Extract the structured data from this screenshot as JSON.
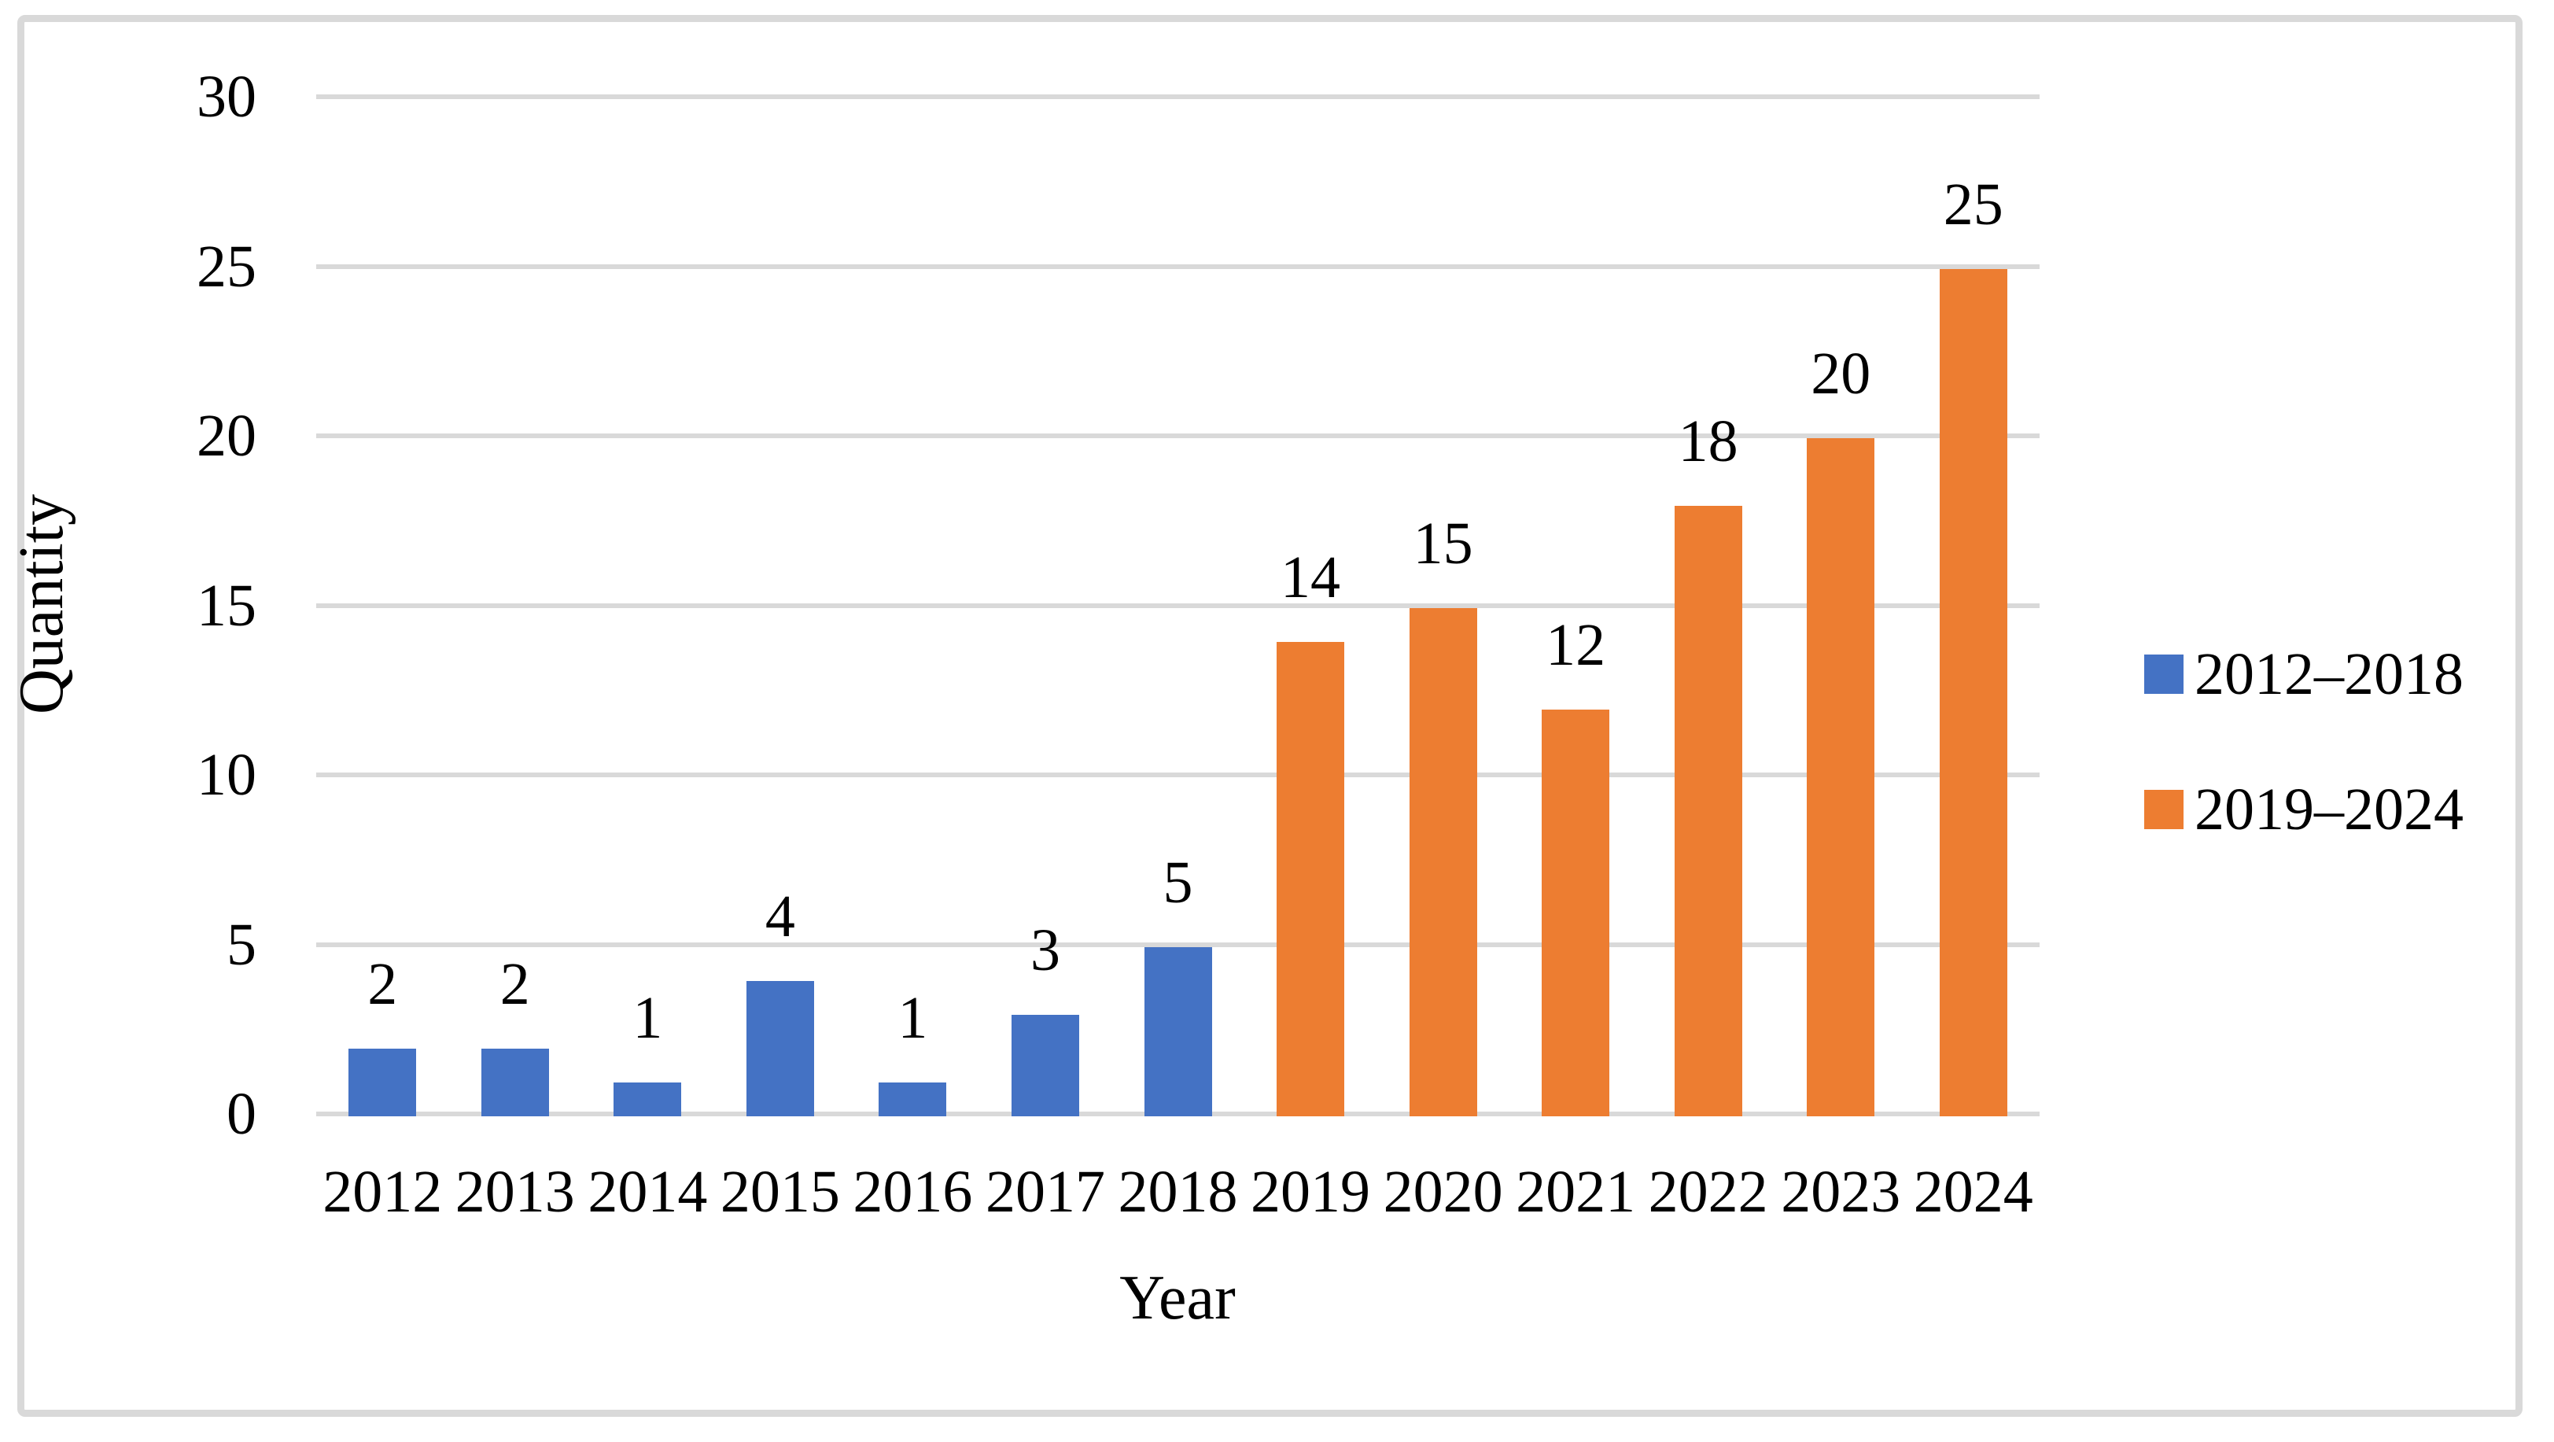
{
  "chart_data": {
    "type": "bar",
    "title": "",
    "xlabel": "Year",
    "ylabel": "Quantity",
    "categories": [
      "2012",
      "2013",
      "2014",
      "2015",
      "2016",
      "2017",
      "2018",
      "2019",
      "2020",
      "2021",
      "2022",
      "2023",
      "2024"
    ],
    "series": [
      {
        "name": "2012–2018",
        "color": "#4472C4",
        "values": [
          2,
          2,
          1,
          4,
          1,
          3,
          5,
          null,
          null,
          null,
          null,
          null,
          null
        ]
      },
      {
        "name": "2019–2024",
        "color": "#ED7D31",
        "values": [
          null,
          null,
          null,
          null,
          null,
          null,
          null,
          14,
          15,
          12,
          18,
          20,
          25
        ]
      }
    ],
    "yticks": [
      0,
      5,
      10,
      15,
      20,
      25,
      30
    ],
    "ylim": [
      0,
      30
    ],
    "grid": true,
    "data_labels": true,
    "legend_position": "right",
    "colors": {
      "gridline": "#D9D9D9",
      "frame": "#D9D9D9",
      "text": "#000000",
      "background": "#FFFFFF"
    }
  }
}
